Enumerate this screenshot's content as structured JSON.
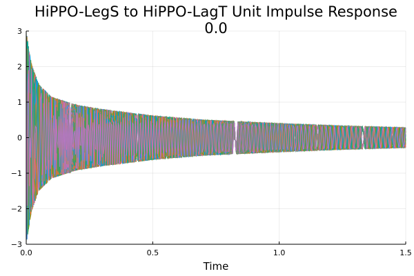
{
  "chart_data": {
    "type": "line",
    "title": "HiPPO-LegS to HiPPO-LagT Unit Impulse Response",
    "subtitle": "0.0",
    "xlabel": "Time",
    "ylabel": "",
    "xlim": [
      0.0,
      1.5
    ],
    "ylim": [
      -3,
      3
    ],
    "xticks": [
      0.0,
      0.5,
      1.0,
      1.5
    ],
    "xtick_labels": [
      "0.0",
      "0.5",
      "1.0",
      "1.5"
    ],
    "yticks": [
      -3,
      -2,
      -1,
      0,
      1,
      2,
      3
    ],
    "ytick_labels": [
      "−3",
      "−2",
      "−1",
      "0",
      "1",
      "2",
      "3"
    ],
    "grid": true,
    "legend": "none",
    "series_count": 64,
    "envelope": {
      "description": "curves oscillate within ±envelope(t), decaying over time",
      "t": [
        0.0,
        0.02,
        0.05,
        0.1,
        0.2,
        0.3,
        0.5,
        0.7,
        1.0,
        1.25,
        1.5
      ],
      "amplitude": [
        3.0,
        2.1,
        1.5,
        1.15,
        0.92,
        0.8,
        0.62,
        0.5,
        0.4,
        0.33,
        0.28
      ]
    },
    "colors": [
      "#009AFA",
      "#E36F47",
      "#3EA44E",
      "#C371D2",
      "#AC8E18",
      "#00AAAE",
      "#ED5E93",
      "#C68225",
      "#00A98D",
      "#8E971E"
    ]
  }
}
